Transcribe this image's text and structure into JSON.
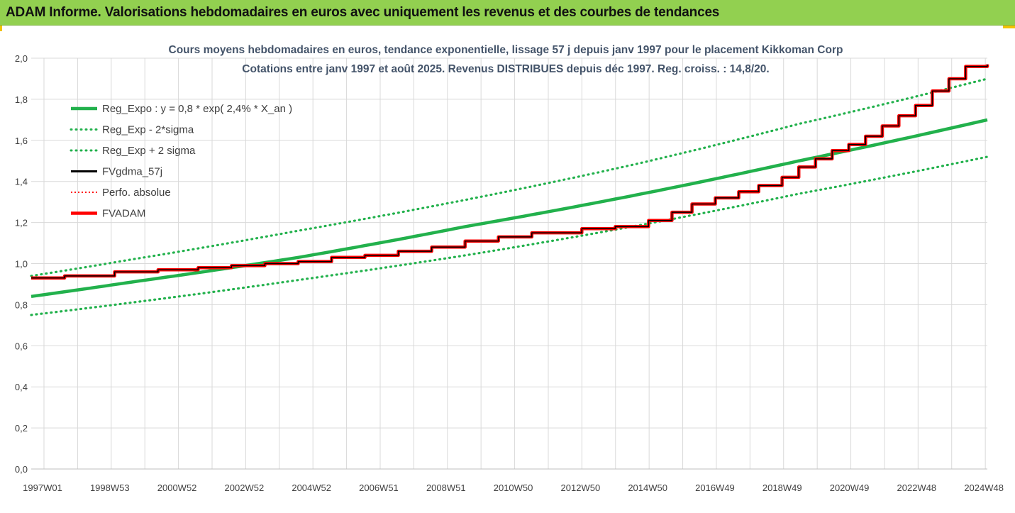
{
  "header": {
    "title": "ADAM Informe. Valorisations hebdomadaires en euros avec uniquement les revenus et des courbes de tendances"
  },
  "chart_data": {
    "type": "line",
    "title": "Cours moyens hebdomadaires en euros, tendance exponentielle, lissage 57 j depuis janv 1997 pour le placement Kikkoman Corp",
    "subtitle": "Cotations entre janv 1997 et août 2025.  Revenus DISTRIBUES depuis déc 1997. Reg. croiss. : 14,8/20.",
    "x_ticks": [
      "1997W01",
      "1998W53",
      "2000W52",
      "2002W52",
      "2004W52",
      "2006W51",
      "2008W51",
      "2010W50",
      "2012W50",
      "2014W50",
      "2016W49",
      "2018W49",
      "2020W49",
      "2022W48",
      "2024W48"
    ],
    "y_ticks": [
      "0,0",
      "0,2",
      "0,4",
      "0,6",
      "0,8",
      "1,0",
      "1,2",
      "1,4",
      "1,6",
      "1,8",
      "2,0"
    ],
    "ylim": [
      0,
      2
    ],
    "xlim": [
      1997.0,
      2025.65
    ],
    "grid": true,
    "legend_position": "top-left",
    "series": [
      {
        "name": "Reg_Expo : y = 0,8 * exp( 2,4% *  X_an )",
        "color": "#22b14c",
        "style": "solid",
        "x": [
          1997.0,
          2000.0,
          2005.0,
          2010.0,
          2015.0,
          2020.0,
          2025.65
        ],
        "y": [
          0.84,
          0.91,
          1.03,
          1.18,
          1.33,
          1.5,
          1.7
        ]
      },
      {
        "name": "Reg_Exp - 2*sigma",
        "color": "#22b14c",
        "style": "dotted",
        "x": [
          1997.0,
          2000.0,
          2005.0,
          2010.0,
          2015.0,
          2020.0,
          2025.65
        ],
        "y": [
          0.75,
          0.81,
          0.92,
          1.04,
          1.18,
          1.34,
          1.52
        ]
      },
      {
        "name": "Reg_Exp + 2 sigma",
        "color": "#22b14c",
        "style": "dotted",
        "x": [
          1997.0,
          2000.0,
          2005.0,
          2010.0,
          2015.0,
          2020.0,
          2025.65
        ],
        "y": [
          0.94,
          1.02,
          1.16,
          1.31,
          1.48,
          1.68,
          1.9
        ]
      },
      {
        "name": "FVgdma_57j",
        "color": "#000000",
        "style": "solid",
        "steps": true,
        "x": [
          1997.0,
          1998.0,
          1999.5,
          2000.8,
          2002.0,
          2003.0,
          2004.0,
          2005.0,
          2006.0,
          2007.0,
          2008.0,
          2009.0,
          2010.0,
          2011.0,
          2012.0,
          2013.5,
          2014.5,
          2015.5,
          2016.2,
          2016.8,
          2017.5,
          2018.2,
          2018.8,
          2019.5,
          2020.0,
          2020.5,
          2021.0,
          2021.5,
          2022.0,
          2022.5,
          2023.0,
          2023.5,
          2024.0,
          2024.5,
          2025.0,
          2025.65
        ],
        "y": [
          0.93,
          0.94,
          0.96,
          0.97,
          0.98,
          0.99,
          1.0,
          1.01,
          1.03,
          1.04,
          1.06,
          1.08,
          1.11,
          1.13,
          1.15,
          1.17,
          1.18,
          1.21,
          1.25,
          1.29,
          1.32,
          1.35,
          1.38,
          1.42,
          1.47,
          1.51,
          1.55,
          1.58,
          1.62,
          1.67,
          1.72,
          1.77,
          1.84,
          1.9,
          1.96,
          1.97
        ]
      },
      {
        "name": "Perfo. absolue",
        "color": "#ff0000",
        "style": "dotted",
        "x": [],
        "y": []
      },
      {
        "name": "FVADAM",
        "color": "#ff0000",
        "style": "solid",
        "steps": true,
        "x": [
          1997.0,
          1998.0,
          1999.5,
          2000.8,
          2002.0,
          2003.0,
          2004.0,
          2005.0,
          2006.0,
          2007.0,
          2008.0,
          2009.0,
          2010.0,
          2011.0,
          2012.0,
          2013.5,
          2014.5,
          2015.5,
          2016.2,
          2016.8,
          2017.5,
          2018.2,
          2018.8,
          2019.5,
          2020.0,
          2020.5,
          2021.0,
          2021.5,
          2022.0,
          2022.5,
          2023.0,
          2023.5,
          2024.0,
          2024.5,
          2025.0,
          2025.65
        ],
        "y": [
          0.93,
          0.94,
          0.96,
          0.97,
          0.98,
          0.99,
          1.0,
          1.01,
          1.03,
          1.04,
          1.06,
          1.08,
          1.11,
          1.13,
          1.15,
          1.17,
          1.18,
          1.21,
          1.25,
          1.29,
          1.32,
          1.35,
          1.38,
          1.42,
          1.47,
          1.51,
          1.55,
          1.58,
          1.62,
          1.67,
          1.72,
          1.77,
          1.84,
          1.9,
          1.96,
          1.97
        ]
      }
    ]
  }
}
